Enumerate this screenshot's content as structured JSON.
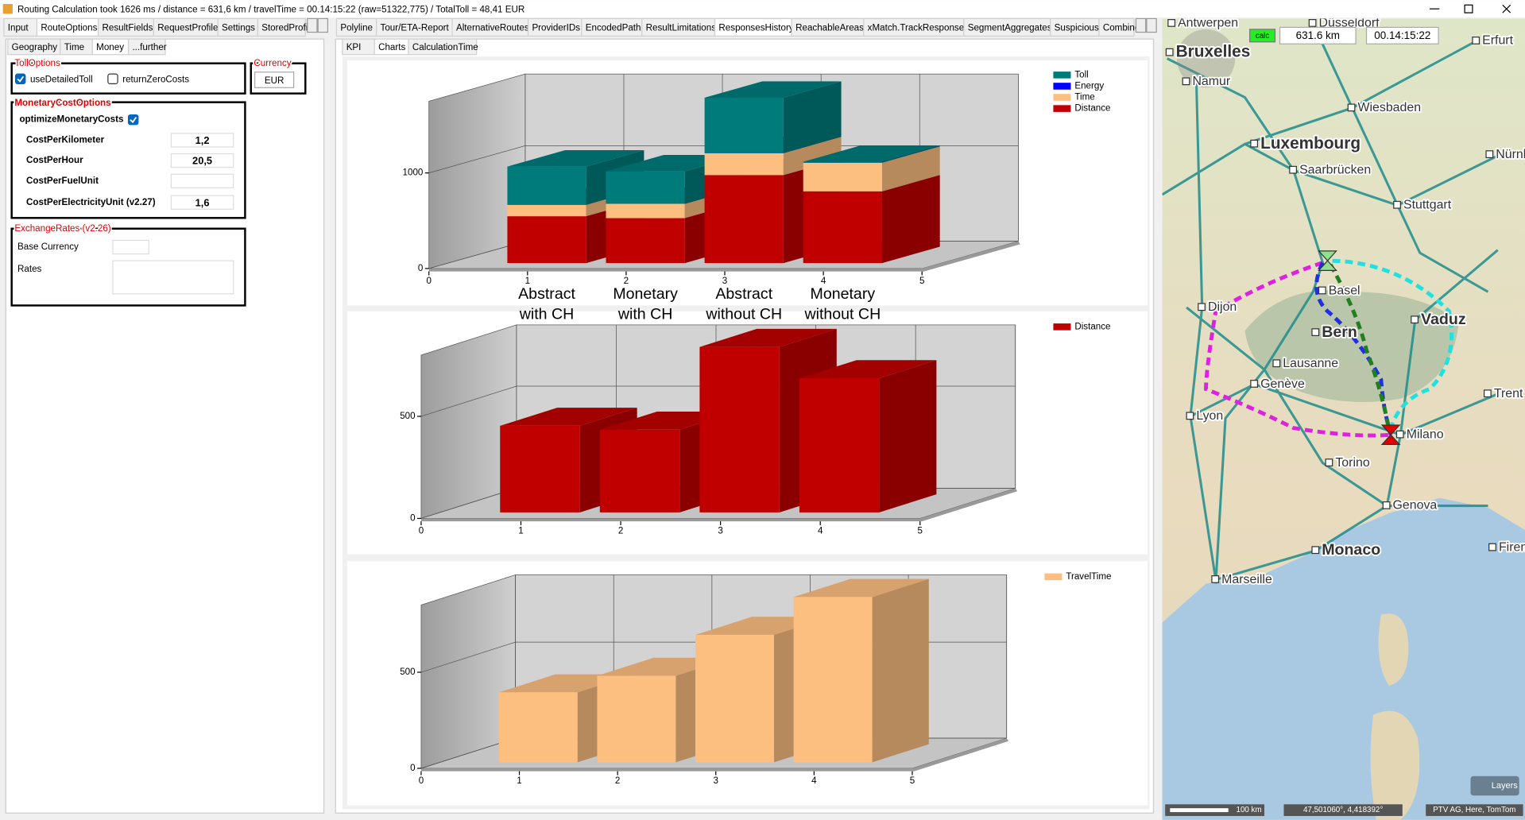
{
  "window": {
    "title": "Routing Calculation took 1626 ms  /  distance = 631,6 km  /  travelTime = 00.14:15:22 (raw=51322,775)  /  TotalToll = 48,41 EUR"
  },
  "main_tabs": [
    "Input",
    "RouteOptions",
    "ResultFields",
    "RequestProfile",
    "Settings",
    "StoredProfil"
  ],
  "route_option_tabs": [
    "Geography",
    "Time",
    "Money",
    "...further"
  ],
  "result_tabs": [
    "Polyline",
    "Tour/ETA-Report",
    "AlternativeRoutes",
    "ProviderIDs",
    "EncodedPath",
    "ResultLimitations",
    "ResponsesHistory",
    "ReachableAreas",
    "xMatch.TrackResponse",
    "SegmentAggregates",
    "Suspicious",
    "Combine"
  ],
  "history_tabs": [
    "KPI",
    "Charts",
    "CalculationTime"
  ],
  "toll_options": {
    "title": "TollOptions",
    "options": [
      {
        "label": "useDetailedToll",
        "checked": true
      },
      {
        "label": "returnZeroCosts",
        "checked": false
      }
    ]
  },
  "currency": {
    "title": "Currency",
    "value": "EUR"
  },
  "monetary_cost_options": {
    "title": "MonetaryCostOptions",
    "optimize": {
      "label": "optimizeMonetaryCosts",
      "checked": true
    },
    "rows": [
      {
        "label": "CostPerKilometer",
        "value": "1,2"
      },
      {
        "label": "CostPerHour",
        "value": "20,5"
      },
      {
        "label": "CostPerFuelUnit"
      },
      {
        "label": "CostPerElectricityUnit (v2.27)",
        "value": "1,6"
      }
    ]
  },
  "exchange_rates": {
    "title": "ExchangeRates (v2.26)",
    "fields": [
      "Base Currency",
      "Rates"
    ]
  },
  "chart_data": [
    {
      "type": "bar",
      "stacked": true,
      "legend": "top-right",
      "x": [
        1,
        2,
        3,
        4
      ],
      "categories": [
        "Abstract with CH",
        "Monetary with CH",
        "Abstract without CH",
        "Monetary without CH"
      ],
      "xlim": [
        0,
        5
      ],
      "xticks": [
        0,
        1,
        2,
        3,
        4,
        5
      ],
      "ylim": [
        0,
        1750
      ],
      "yticks": [
        0,
        1000
      ],
      "grid": true,
      "series": [
        {
          "name": "Toll",
          "color": "#007b7b",
          "values": [
            400,
            340,
            580,
            10
          ]
        },
        {
          "name": "Energy",
          "color": "#0000ff",
          "values": [
            0,
            0,
            0,
            0
          ]
        },
        {
          "name": "Time",
          "color": "#fdbf80",
          "values": [
            120,
            150,
            230,
            300
          ]
        },
        {
          "name": "Distance",
          "color": "#c00000",
          "values": [
            490,
            470,
            920,
            750
          ]
        }
      ]
    },
    {
      "type": "bar",
      "legend": "top-right",
      "x": [
        1,
        2,
        3,
        4
      ],
      "xlim": [
        0,
        5
      ],
      "xticks": [
        0,
        1,
        2,
        3,
        4,
        5
      ],
      "ylim": [
        0,
        800
      ],
      "yticks": [
        0,
        500
      ],
      "grid": true,
      "series": [
        {
          "name": "Distance",
          "color": "#c00000",
          "values": [
            424,
            405,
            810,
            657
          ]
        }
      ]
    },
    {
      "type": "bar",
      "legend": "top-right",
      "x": [
        1,
        2,
        3,
        4
      ],
      "xlim": [
        0,
        5
      ],
      "xticks": [
        0,
        1,
        2,
        3,
        4,
        5
      ],
      "ylim": [
        0,
        850
      ],
      "yticks": [
        0,
        500
      ],
      "grid": true,
      "series": [
        {
          "name": "TravelTime",
          "color": "#fdbf80",
          "values": [
            364,
            450,
            663,
            860
          ]
        }
      ]
    }
  ],
  "map": {
    "calc": "calc",
    "distance": "631.6 km",
    "travel_time": "00.14:15:22",
    "cities": [
      {
        "label": "Antwerpen"
      },
      {
        "label": "Düsseldorf"
      },
      {
        "label": "Erfurt"
      },
      {
        "label": "Bruxelles"
      },
      {
        "label": "Namur"
      },
      {
        "label": "Wiesbaden"
      },
      {
        "label": "Luxembourg"
      },
      {
        "label": "Saarbrücken"
      },
      {
        "label": "Nürnb"
      },
      {
        "label": "Stuttgart"
      },
      {
        "label": "Basel"
      },
      {
        "label": "Dijon"
      },
      {
        "label": "Vaduz"
      },
      {
        "label": "Bern"
      },
      {
        "label": "Lausanne"
      },
      {
        "label": "Genève"
      },
      {
        "label": "Lyon"
      },
      {
        "label": "Milano"
      },
      {
        "label": "Torino"
      },
      {
        "label": "Genova"
      },
      {
        "label": "Monaco"
      },
      {
        "label": "Marseille"
      },
      {
        "label": "Trent"
      },
      {
        "label": "Firen"
      }
    ],
    "scale": "100 km",
    "coordinates": "47,501060°, 4,418392°",
    "attribution": "PTV AG, Here, TomTom",
    "layers": "Layers"
  }
}
